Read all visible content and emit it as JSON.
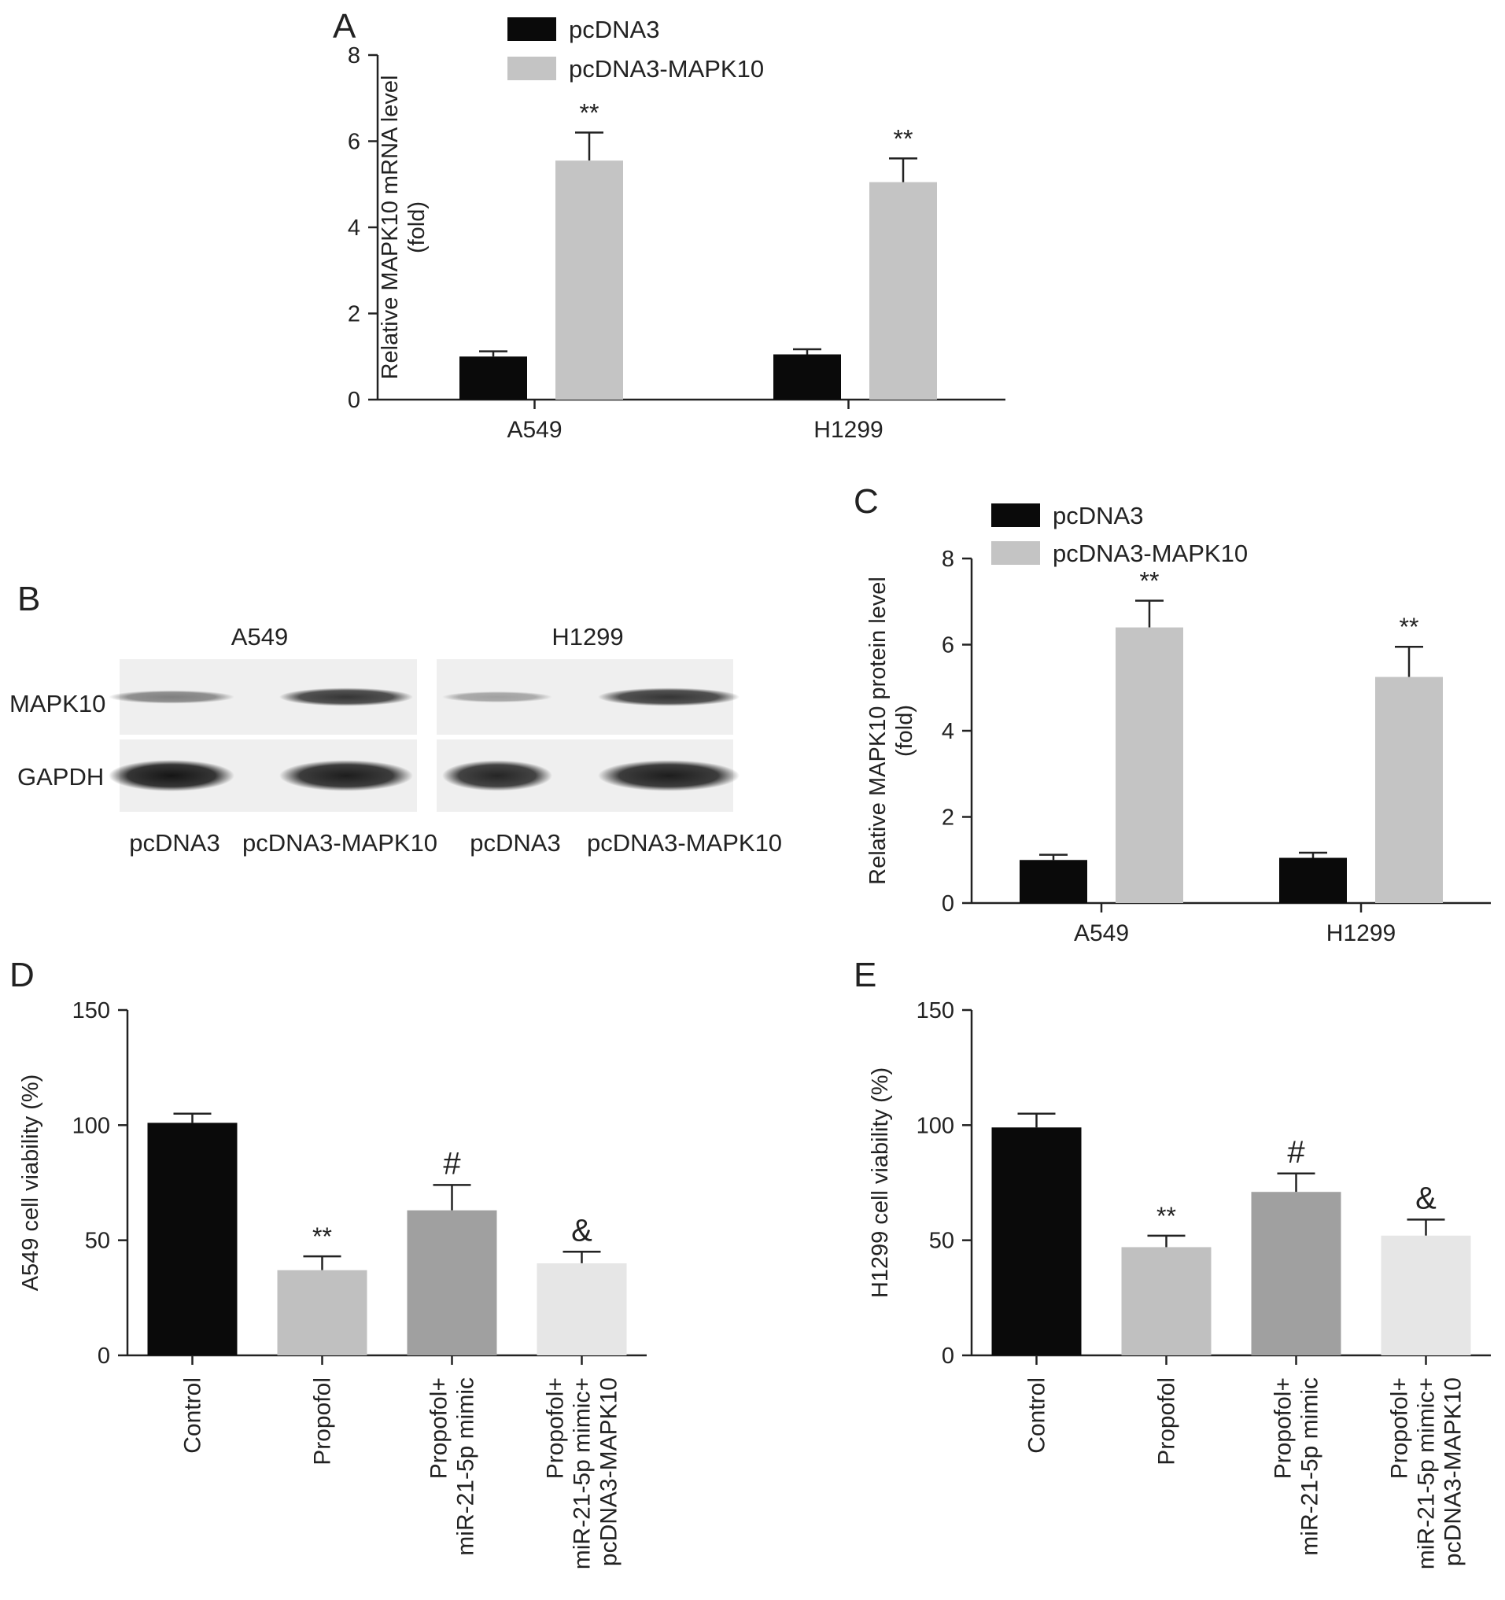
{
  "colors": {
    "pcDNA3": "#0a0a0a",
    "pcDNA3-MAPK10": "#c4c4c4",
    "viability": [
      "#0a0a0a",
      "#c0c0c0",
      "#a0a0a0",
      "#e6e6e6"
    ],
    "blot_background": "#efefef",
    "band": "#151515"
  },
  "chart_data": [
    {
      "panel": "A",
      "type": "bar",
      "categories": [
        "A549",
        "H1299"
      ],
      "series": [
        {
          "name": "pcDNA3",
          "values": [
            1.0,
            1.05
          ],
          "errors": [
            0.12,
            0.12
          ]
        },
        {
          "name": "pcDNA3-MAPK10",
          "values": [
            5.55,
            5.05
          ],
          "errors": [
            0.65,
            0.55
          ]
        }
      ],
      "annotations": [
        [
          "",
          "**"
        ],
        [
          "",
          "**"
        ]
      ],
      "ylabel": "Relative MAPK10 mRNA level\n(fold)",
      "ylim": [
        0,
        8
      ],
      "yticks": [
        0,
        2,
        4,
        6,
        8
      ],
      "legend": "top-left",
      "grid": false
    },
    {
      "panel": "C",
      "type": "bar",
      "categories": [
        "A549",
        "H1299"
      ],
      "series": [
        {
          "name": "pcDNA3",
          "values": [
            1.0,
            1.05
          ],
          "errors": [
            0.12,
            0.12
          ]
        },
        {
          "name": "pcDNA3-MAPK10",
          "values": [
            6.4,
            5.25
          ],
          "errors": [
            0.62,
            0.7
          ]
        }
      ],
      "annotations": [
        [
          "",
          "**"
        ],
        [
          "",
          "**"
        ]
      ],
      "ylabel": "Relative MAPK10 protein level\n(fold)",
      "ylim": [
        0,
        8
      ],
      "yticks": [
        0,
        2,
        4,
        6,
        8
      ],
      "legend": "top-left",
      "grid": false
    },
    {
      "panel": "D",
      "type": "bar",
      "categories": [
        "Control",
        "Propofol",
        "Propofol+\nmiR-21-5p mimic",
        "Propofol+\nmiR-21-5p mimic+\npcDNA3-MAPK10"
      ],
      "values": [
        101,
        37,
        63,
        40
      ],
      "errors": [
        4,
        6,
        11,
        5
      ],
      "annotations": [
        "",
        "**",
        "#",
        "&"
      ],
      "ylabel": "A549 cell viability (%)",
      "ylim": [
        0,
        150
      ],
      "yticks": [
        0,
        50,
        100,
        150
      ],
      "grid": false
    },
    {
      "panel": "E",
      "type": "bar",
      "categories": [
        "Control",
        "Propofol",
        "Propofol+\nmiR-21-5p mimic",
        "Propofol+\nmiR-21-5p mimic+\npcDNA3-MAPK10"
      ],
      "values": [
        99,
        47,
        71,
        52
      ],
      "errors": [
        6,
        5,
        8,
        7
      ],
      "annotations": [
        "",
        "**",
        "#",
        "&"
      ],
      "ylabel": "H1299 cell viability (%)",
      "ylim": [
        0,
        150
      ],
      "yticks": [
        0,
        50,
        100,
        150
      ],
      "grid": false
    }
  ],
  "blot": {
    "panel": "B",
    "cell_lines": [
      "A549",
      "H1299"
    ],
    "rows": [
      "MAPK10",
      "GAPDH"
    ],
    "lanes": [
      "pcDNA3",
      "pcDNA3-MAPK10",
      "pcDNA3",
      "pcDNA3-MAPK10"
    ],
    "band_intensity": {
      "MAPK10": [
        0.35,
        0.8,
        0.15,
        0.8
      ],
      "GAPDH": [
        1.0,
        0.95,
        0.9,
        0.95
      ]
    }
  }
}
